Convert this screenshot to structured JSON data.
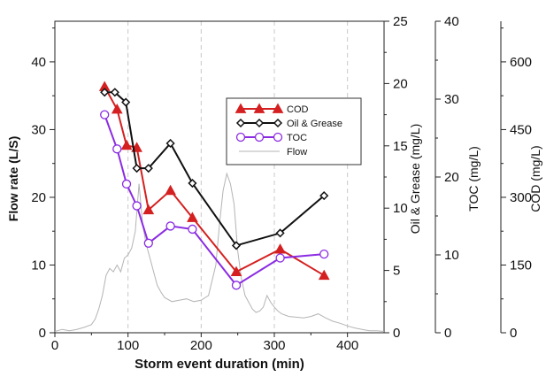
{
  "chart_data": {
    "type": "line",
    "xlabel": "Storm event duration (min)",
    "xlim": [
      0,
      450
    ],
    "xticks": [
      "0",
      "100",
      "200",
      "300",
      "400"
    ],
    "grid": "vertical dashed",
    "legend_position": "center-right",
    "axes": [
      {
        "id": "flow",
        "label": "Flow rate (L/S)",
        "lim": [
          0,
          46
        ],
        "ticks": [
          "0",
          "10",
          "20",
          "30",
          "40"
        ]
      },
      {
        "id": "og",
        "label": "Oil & Grease (mg/L)",
        "lim": [
          0,
          25
        ],
        "ticks": [
          "0",
          "5",
          "10",
          "15",
          "20",
          "25"
        ]
      },
      {
        "id": "toc",
        "label": "TOC (mg/L)",
        "lim": [
          0,
          40
        ],
        "ticks": [
          "0",
          "10",
          "20",
          "30",
          "40"
        ]
      },
      {
        "id": "cod",
        "label": "COD (mg/L)",
        "lim": [
          0,
          690
        ],
        "ticks": [
          "0",
          "150",
          "300",
          "450",
          "600"
        ]
      }
    ],
    "series": [
      {
        "name": "COD",
        "axis": "cod",
        "color": "#d42020",
        "marker": "triangle-filled",
        "x": [
          68,
          85,
          98,
          112,
          128,
          158,
          188,
          248,
          308,
          368
        ],
        "y": [
          545,
          495,
          415,
          410,
          272,
          315,
          255,
          135,
          185,
          127
        ]
      },
      {
        "name": "Oil & Grease",
        "axis": "og",
        "color": "#101010",
        "marker": "diamond-open",
        "x": [
          68,
          82,
          97,
          112,
          128,
          158,
          188,
          248,
          308,
          368
        ],
        "y": [
          19.3,
          19.3,
          18.5,
          13.2,
          13.2,
          15.2,
          12.0,
          7.0,
          8.0,
          11.0
        ]
      },
      {
        "name": "TOC",
        "axis": "toc",
        "color": "#8a2be2",
        "marker": "circle-open",
        "x": [
          68,
          85,
          98,
          112,
          128,
          158,
          188,
          248,
          308,
          368
        ],
        "y": [
          28.0,
          23.6,
          19.1,
          16.3,
          11.5,
          13.7,
          13.3,
          6.1,
          9.6,
          10.1
        ]
      },
      {
        "name": "Flow",
        "axis": "flow",
        "color": "#b4b4b4",
        "marker": "none",
        "x": [
          0,
          10,
          20,
          30,
          40,
          50,
          55,
          60,
          65,
          70,
          75,
          80,
          85,
          90,
          95,
          100,
          105,
          110,
          115,
          120,
          125,
          130,
          135,
          140,
          145,
          150,
          160,
          170,
          180,
          190,
          200,
          210,
          220,
          225,
          230,
          235,
          240,
          245,
          250,
          255,
          260,
          265,
          270,
          275,
          280,
          285,
          290,
          295,
          300,
          305,
          310,
          320,
          330,
          340,
          350,
          360,
          370,
          380,
          390,
          400,
          410,
          420,
          430,
          440,
          450
        ],
        "y": [
          0.2,
          0.5,
          0.3,
          0.5,
          0.8,
          1.2,
          2.0,
          3.5,
          5.5,
          8.5,
          9.5,
          9.0,
          10.0,
          9.0,
          11.0,
          11.5,
          12.5,
          15.0,
          22.0,
          16.0,
          13.0,
          11.0,
          9.0,
          7.0,
          6.0,
          5.2,
          4.6,
          4.8,
          5.0,
          4.6,
          4.8,
          5.5,
          10.0,
          16.0,
          21.0,
          23.5,
          22.0,
          19.0,
          12.0,
          8.0,
          5.5,
          4.5,
          3.5,
          3.0,
          3.2,
          3.8,
          5.5,
          4.5,
          3.8,
          3.2,
          2.8,
          2.4,
          2.3,
          2.2,
          2.4,
          2.8,
          2.2,
          1.7,
          1.4,
          1.0,
          0.7,
          0.5,
          0.3,
          0.3,
          0.2
        ]
      }
    ]
  }
}
